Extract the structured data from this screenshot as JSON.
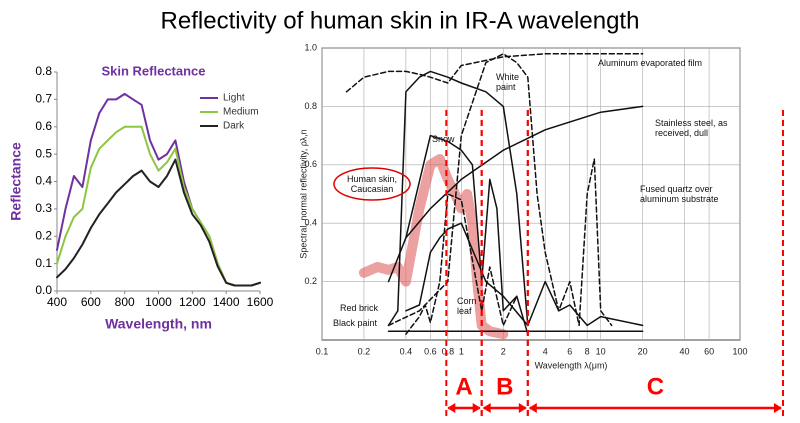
{
  "title": "Reflectivity of human skin in IR-A wavelength",
  "chart_data": [
    {
      "type": "line",
      "title": "Skin Reflectance",
      "xlabel": "Wavelength, nm",
      "ylabel": "Reflectance",
      "x": [
        400,
        450,
        500,
        550,
        600,
        650,
        700,
        750,
        800,
        850,
        900,
        950,
        1000,
        1050,
        1100,
        1150,
        1200,
        1250,
        1300,
        1350,
        1400,
        1450,
        1500,
        1550,
        1600
      ],
      "series": [
        {
          "name": "Light",
          "color": "#7030a0",
          "values": [
            0.15,
            0.3,
            0.42,
            0.38,
            0.55,
            0.65,
            0.7,
            0.7,
            0.72,
            0.7,
            0.68,
            0.55,
            0.48,
            0.5,
            0.55,
            0.4,
            0.3,
            0.25,
            0.2,
            0.1,
            0.03,
            0.02,
            0.02,
            0.02,
            0.03
          ]
        },
        {
          "name": "Medium",
          "color": "#8dc63f",
          "values": [
            0.1,
            0.2,
            0.27,
            0.3,
            0.45,
            0.52,
            0.55,
            0.58,
            0.6,
            0.6,
            0.6,
            0.5,
            0.44,
            0.47,
            0.52,
            0.38,
            0.3,
            0.25,
            0.2,
            0.1,
            0.03,
            0.02,
            0.02,
            0.02,
            0.03
          ]
        },
        {
          "name": "Dark",
          "color": "#222222",
          "values": [
            0.05,
            0.08,
            0.12,
            0.17,
            0.23,
            0.28,
            0.32,
            0.36,
            0.39,
            0.42,
            0.44,
            0.4,
            0.38,
            0.42,
            0.48,
            0.36,
            0.28,
            0.24,
            0.18,
            0.09,
            0.03,
            0.02,
            0.02,
            0.02,
            0.03
          ]
        }
      ],
      "xlim": [
        400,
        1600
      ],
      "xticks": [
        400,
        600,
        800,
        1000,
        1200,
        1400,
        1600
      ],
      "ylim": [
        0,
        0.8
      ],
      "yticks": [
        {
          "value": 0,
          "label": "0.0"
        },
        0.1,
        0.2,
        0.3,
        0.4,
        0.5,
        0.6,
        0.7,
        0.8
      ],
      "legend": "upper right",
      "grid": false
    },
    {
      "type": "line",
      "xlabel": "Wavelength  λ(μm)",
      "ylabel": "Spectral, normal reflectivity, ρλ,n",
      "xscale": "log",
      "xlim": [
        0.1,
        100
      ],
      "xticks": [
        0.1,
        0.2,
        0.4,
        0.6,
        0.8,
        1,
        2,
        4,
        6,
        8,
        10,
        20,
        40,
        60,
        100
      ],
      "ylim": [
        0,
        1
      ],
      "yticks": [
        0.2,
        0.4,
        0.6,
        0.8,
        {
          "value": 1,
          "label": "1.0"
        }
      ],
      "grid": true,
      "series": [
        {
          "name": "Human skin, Caucasian",
          "color": "#e06060",
          "highlight": true,
          "x": [
            0.2,
            0.25,
            0.3,
            0.35,
            0.4,
            0.5,
            0.6,
            0.7,
            0.8,
            0.9,
            1.0,
            1.1,
            1.2,
            1.3,
            1.4,
            1.6,
            2.0
          ],
          "values": [
            0.23,
            0.25,
            0.24,
            0.25,
            0.2,
            0.45,
            0.6,
            0.62,
            0.55,
            0.5,
            0.45,
            0.5,
            0.4,
            0.2,
            0.05,
            0.03,
            0.02
          ]
        },
        {
          "name": "Snow",
          "color": "#111111",
          "x": [
            0.3,
            0.4,
            0.6,
            0.8,
            1.0,
            1.2,
            1.4,
            1.6,
            1.8,
            2,
            2.5,
            3
          ],
          "values": [
            0.2,
            0.35,
            0.7,
            0.68,
            0.65,
            0.6,
            0.2,
            0.55,
            0.45,
            0.1,
            0.15,
            0.02
          ]
        },
        {
          "name": "White paint",
          "color": "#111111",
          "x": [
            0.3,
            0.35,
            0.4,
            0.5,
            0.6,
            0.8,
            1,
            1.5,
            2,
            2.5,
            3,
            4,
            5,
            6,
            8,
            10,
            20
          ],
          "values": [
            0.05,
            0.1,
            0.85,
            0.9,
            0.92,
            0.9,
            0.88,
            0.85,
            0.8,
            0.5,
            0.05,
            0.2,
            0.1,
            0.12,
            0.05,
            0.08,
            0.05
          ]
        },
        {
          "name": "Aluminum evaporated film",
          "color": "#111111",
          "dash": true,
          "x": [
            0.15,
            0.2,
            0.3,
            0.4,
            0.5,
            0.6,
            0.8,
            1,
            2,
            4,
            10,
            20
          ],
          "values": [
            0.85,
            0.9,
            0.92,
            0.92,
            0.91,
            0.9,
            0.88,
            0.94,
            0.97,
            0.98,
            0.98,
            0.98
          ]
        },
        {
          "name": "Stainless steel, as received, dull",
          "color": "#111111",
          "x": [
            0.4,
            0.6,
            1,
            2,
            4,
            10,
            20
          ],
          "values": [
            0.35,
            0.45,
            0.55,
            0.65,
            0.72,
            0.78,
            0.8
          ]
        },
        {
          "name": "Fused quartz over aluminum substrate",
          "color": "#111111",
          "dash": true,
          "x": [
            0.3,
            0.5,
            0.8,
            1,
            1.5,
            2,
            2.5,
            3,
            3.5,
            4,
            5,
            6,
            7,
            8,
            9,
            10,
            12
          ],
          "values": [
            0.05,
            0.1,
            0.2,
            0.7,
            0.95,
            0.98,
            0.95,
            0.9,
            0.5,
            0.3,
            0.1,
            0.2,
            0.05,
            0.5,
            0.62,
            0.1,
            0.05
          ]
        },
        {
          "name": "Red brick",
          "color": "#111111",
          "x": [
            0.4,
            0.5,
            0.6,
            0.7,
            0.8,
            1,
            1.5,
            2,
            3
          ],
          "values": [
            0.1,
            0.12,
            0.3,
            0.35,
            0.38,
            0.4,
            0.2,
            0.15,
            0.05
          ]
        },
        {
          "name": "Black paint",
          "color": "#111111",
          "x": [
            0.3,
            1,
            3,
            10,
            20
          ],
          "values": [
            0.03,
            0.03,
            0.03,
            0.03,
            0.03
          ]
        },
        {
          "name": "Corn leaf",
          "color": "#111111",
          "dash": true,
          "x": [
            0.4,
            0.5,
            0.55,
            0.6,
            0.7,
            0.8,
            1,
            1.4,
            1.6,
            2,
            2.5
          ],
          "values": [
            0.02,
            0.08,
            0.12,
            0.06,
            0.2,
            0.5,
            0.48,
            0.1,
            0.25,
            0.05,
            0.15
          ]
        }
      ],
      "regions": [
        {
          "label": "A",
          "start": 0.78,
          "end": 1.4
        },
        {
          "label": "B",
          "start": 1.4,
          "end": 3
        },
        {
          "label": "C",
          "start": 3
        }
      ],
      "region_color": "#ff0000"
    }
  ]
}
